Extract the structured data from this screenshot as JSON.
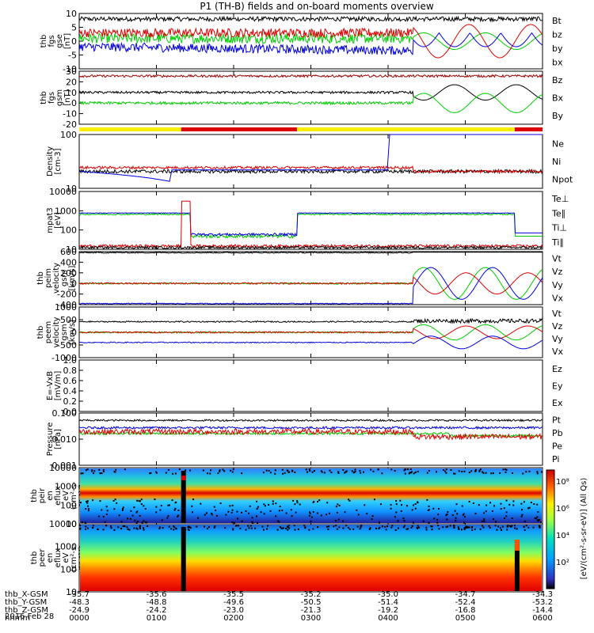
{
  "title": "P1 (TH-B) fields and on-board moments overview",
  "date_label": "2016 Feb 28",
  "colors": {
    "black": "#000000",
    "red": "#dd0000",
    "green": "#00cc00",
    "blue": "#0000dd",
    "darkred": "#9a0000",
    "yellow": "#ffee00"
  },
  "ephemeris": {
    "rows": [
      {
        "label": "thb_X-GSM",
        "values": [
          "-35.7",
          "-35.6",
          "-35.5",
          "-35.2",
          "-35.0",
          "-34.7",
          "-34.3"
        ]
      },
      {
        "label": "thb_Y-GSM",
        "values": [
          "-48.3",
          "-48.8",
          "-49.6",
          "-50.5",
          "-51.4",
          "-52.4",
          "-53.2"
        ]
      },
      {
        "label": "thb_Z-GSM",
        "values": [
          "-24.9",
          "-24.2",
          "-23.0",
          "-21.3",
          "-19.2",
          "-16.8",
          "-14.4"
        ]
      },
      {
        "label": "hhmm",
        "values": [
          "0000",
          "0100",
          "0200",
          "0300",
          "0400",
          "0500",
          "0600"
        ]
      }
    ]
  },
  "colorbar": {
    "label": "[eV/(cm²-s-sr-eV)] (All Qs)",
    "ticks": [
      "10⁸",
      "10⁶",
      "10⁴",
      "10²"
    ]
  },
  "chart_data": [
    {
      "type": "line",
      "panel": "fgs_gse",
      "ylabel": [
        "thb",
        "fgs",
        "gse",
        "[nT]"
      ],
      "ylim": [
        -10,
        10
      ],
      "yticks": [
        "10",
        "5",
        "0",
        "-5",
        "-10"
      ],
      "series": [
        {
          "name": "Bt",
          "color": "#000000"
        },
        {
          "name": "bz",
          "color": "#dd0000"
        },
        {
          "name": "by",
          "color": "#00cc00"
        },
        {
          "name": "bx",
          "color": "#0000dd"
        }
      ]
    },
    {
      "type": "line",
      "panel": "fgs_gsm",
      "ylabel": [
        "thb",
        "fgs",
        "gsm",
        "[nT]"
      ],
      "ylim": [
        -25,
        30
      ],
      "yticks": [
        "30",
        "20",
        "10",
        "0",
        "-10",
        "-20"
      ],
      "series": [
        {
          "name": "Bz",
          "color": "#9a0000"
        },
        {
          "name": "Bx",
          "color": "#000000"
        },
        {
          "name": "By",
          "color": "#00cc00"
        }
      ]
    },
    {
      "type": "line",
      "panel": "density",
      "ylabel": [
        "Density",
        "[cm-3]"
      ],
      "ylog": true,
      "ylim": [
        1,
        300
      ],
      "yticks": [
        "100",
        "10"
      ],
      "series": [
        {
          "name": "Ne",
          "color": "#dd0000"
        },
        {
          "name": "Ni",
          "color": "#000000"
        },
        {
          "name": "Npot",
          "color": "#0000dd"
        }
      ]
    },
    {
      "type": "line",
      "panel": "temperature",
      "ylabel": [
        "mpat3",
        "[eV]"
      ],
      "ylog": true,
      "ylim": [
        8,
        10000
      ],
      "yticks": [
        "10000",
        "1000",
        "100",
        "10"
      ],
      "series": [
        {
          "name": "Te⊥",
          "color": "#dd0000"
        },
        {
          "name": "Te∥",
          "color": "#000000"
        },
        {
          "name": "Ti⊥",
          "color": "#0000dd"
        },
        {
          "name": "Ti∥",
          "color": "#00cc00"
        }
      ]
    },
    {
      "type": "line",
      "panel": "peim_velocity",
      "ylabel": [
        "thb",
        "peim",
        "velocity",
        "gsm",
        "[km/s]"
      ],
      "ylim": [
        -400,
        600
      ],
      "yticks": [
        "600",
        "400",
        "200",
        "0",
        "-200",
        "-400"
      ],
      "series": [
        {
          "name": "Vt",
          "color": "#000000"
        },
        {
          "name": "Vz",
          "color": "#dd0000"
        },
        {
          "name": "Vy",
          "color": "#00cc00"
        },
        {
          "name": "Vx",
          "color": "#0000dd"
        }
      ]
    },
    {
      "type": "line",
      "panel": "peem_velocity",
      "ylabel": [
        "thb",
        "peem",
        "velocity",
        "gsm",
        "[km/s]"
      ],
      "ylim": [
        -1000,
        1000
      ],
      "yticks": [
        "1000",
        "500",
        "0",
        "-500",
        "-1000"
      ],
      "series": [
        {
          "name": "Vt",
          "color": "#000000"
        },
        {
          "name": "Vz",
          "color": "#dd0000"
        },
        {
          "name": "Vy",
          "color": "#00cc00"
        },
        {
          "name": "Vx",
          "color": "#0000dd"
        }
      ]
    },
    {
      "type": "line",
      "panel": "efield",
      "ylabel": [
        "E=-VxB",
        "[mV/m]"
      ],
      "ylim": [
        0,
        1
      ],
      "yticks": [
        "1.0",
        "0.8",
        "0.6",
        "0.4",
        "0.2",
        "0.0"
      ],
      "series": [
        {
          "name": "Ez",
          "color": "#dd0000"
        },
        {
          "name": "Ey",
          "color": "#00cc00"
        },
        {
          "name": "Ex",
          "color": "#0000dd"
        }
      ]
    },
    {
      "type": "line",
      "panel": "pressure",
      "ylabel": [
        "Pressure",
        "[nPa]"
      ],
      "ylog": true,
      "ylim": [
        0.001,
        0.2
      ],
      "yticks": [
        "0.100",
        "0.010",
        "0.001"
      ],
      "series": [
        {
          "name": "Pt",
          "color": "#000000"
        },
        {
          "name": "Pb",
          "color": "#dd0000"
        },
        {
          "name": "Pe",
          "color": "#00cc00"
        },
        {
          "name": "Pi",
          "color": "#0000dd"
        }
      ]
    },
    {
      "type": "heatmap",
      "panel": "peir_eflux",
      "ylabel": [
        "thb",
        "peir",
        "en",
        "eflux",
        "eV",
        "(cm²-s-",
        "sr-eV)"
      ],
      "ylog": true,
      "yticks": [
        "10000",
        "1000",
        "100",
        "10"
      ]
    },
    {
      "type": "heatmap",
      "panel": "peer_eflux",
      "ylabel": [
        "thb",
        "peer",
        "en",
        "eflux",
        "eV",
        "(cm²-s-",
        "sr-eV)"
      ],
      "ylog": true,
      "yticks": [
        "10000",
        "1000",
        "100",
        "10"
      ]
    }
  ]
}
